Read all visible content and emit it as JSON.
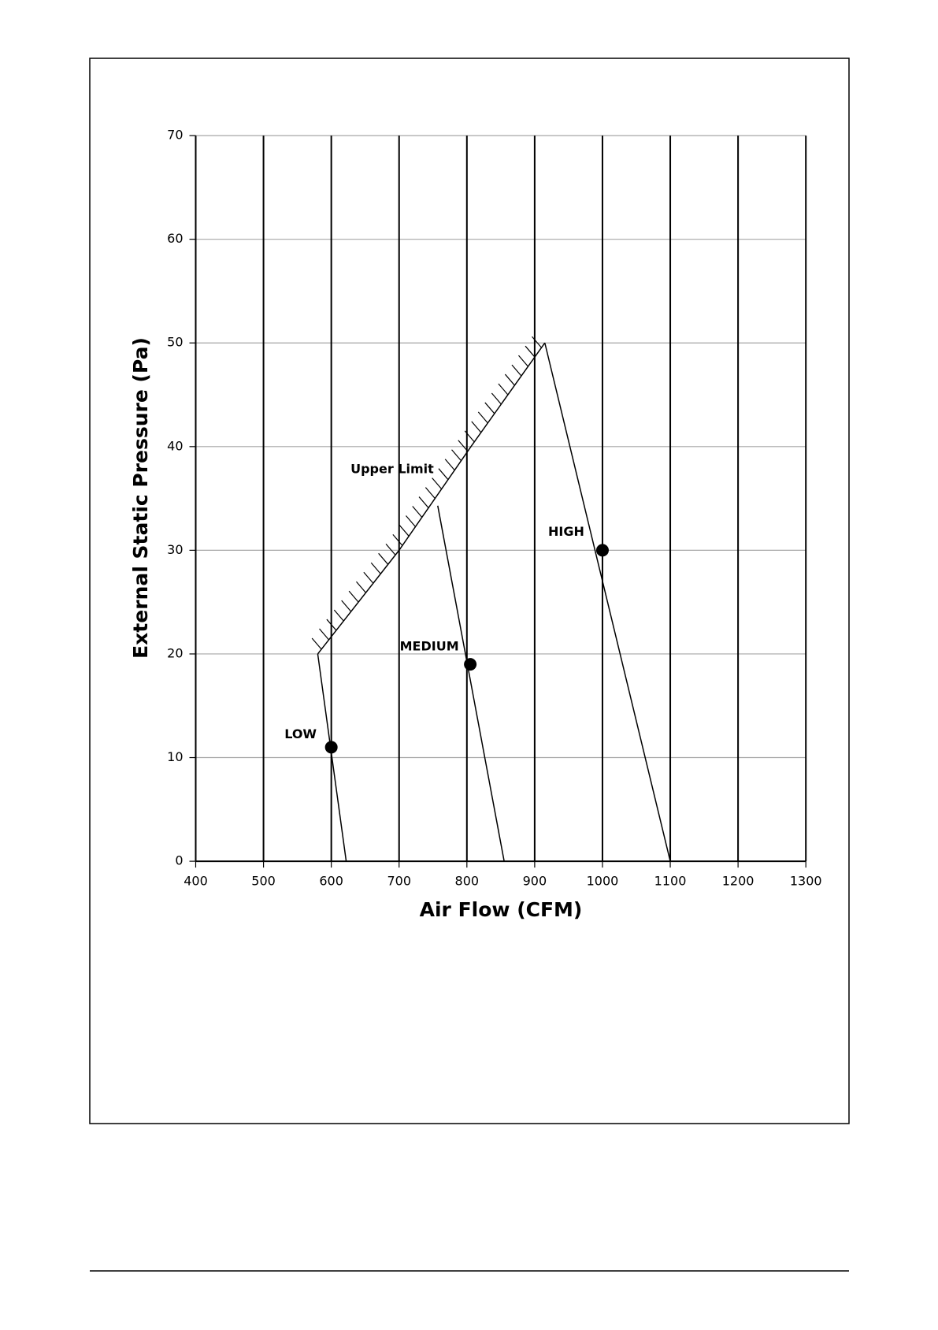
{
  "chart_data": {
    "type": "line",
    "xlabel": "Air Flow (CFM)",
    "ylabel": "External Static Pressure (Pa)",
    "xlim": [
      400,
      1300
    ],
    "xticks": [
      400,
      500,
      600,
      700,
      800,
      900,
      1000,
      1100,
      1200,
      1300
    ],
    "ylim": [
      0,
      70
    ],
    "yticks": [
      0,
      10,
      20,
      30,
      40,
      50,
      60,
      70
    ],
    "grid": true,
    "x_grid_color": "#000000",
    "y_grid_color": "#a6a6a6",
    "color": "#000000",
    "series": [
      {
        "name": "LOW",
        "x": [
          580,
          622
        ],
        "values": [
          20,
          0
        ],
        "operating_point": {
          "x": 600,
          "y": 11
        }
      },
      {
        "name": "MEDIUM",
        "x": [
          757,
          855
        ],
        "values": [
          34.3,
          0
        ],
        "operating_point": {
          "x": 805,
          "y": 19
        }
      },
      {
        "name": "HIGH",
        "x": [
          915,
          1100
        ],
        "values": [
          50,
          0
        ],
        "operating_point": {
          "x": 1000,
          "y": 30
        }
      }
    ],
    "upper_limit": {
      "name": "Upper Limit",
      "x": [
        580,
        700,
        806,
        915
      ],
      "values": [
        20,
        30,
        40,
        50
      ]
    }
  }
}
